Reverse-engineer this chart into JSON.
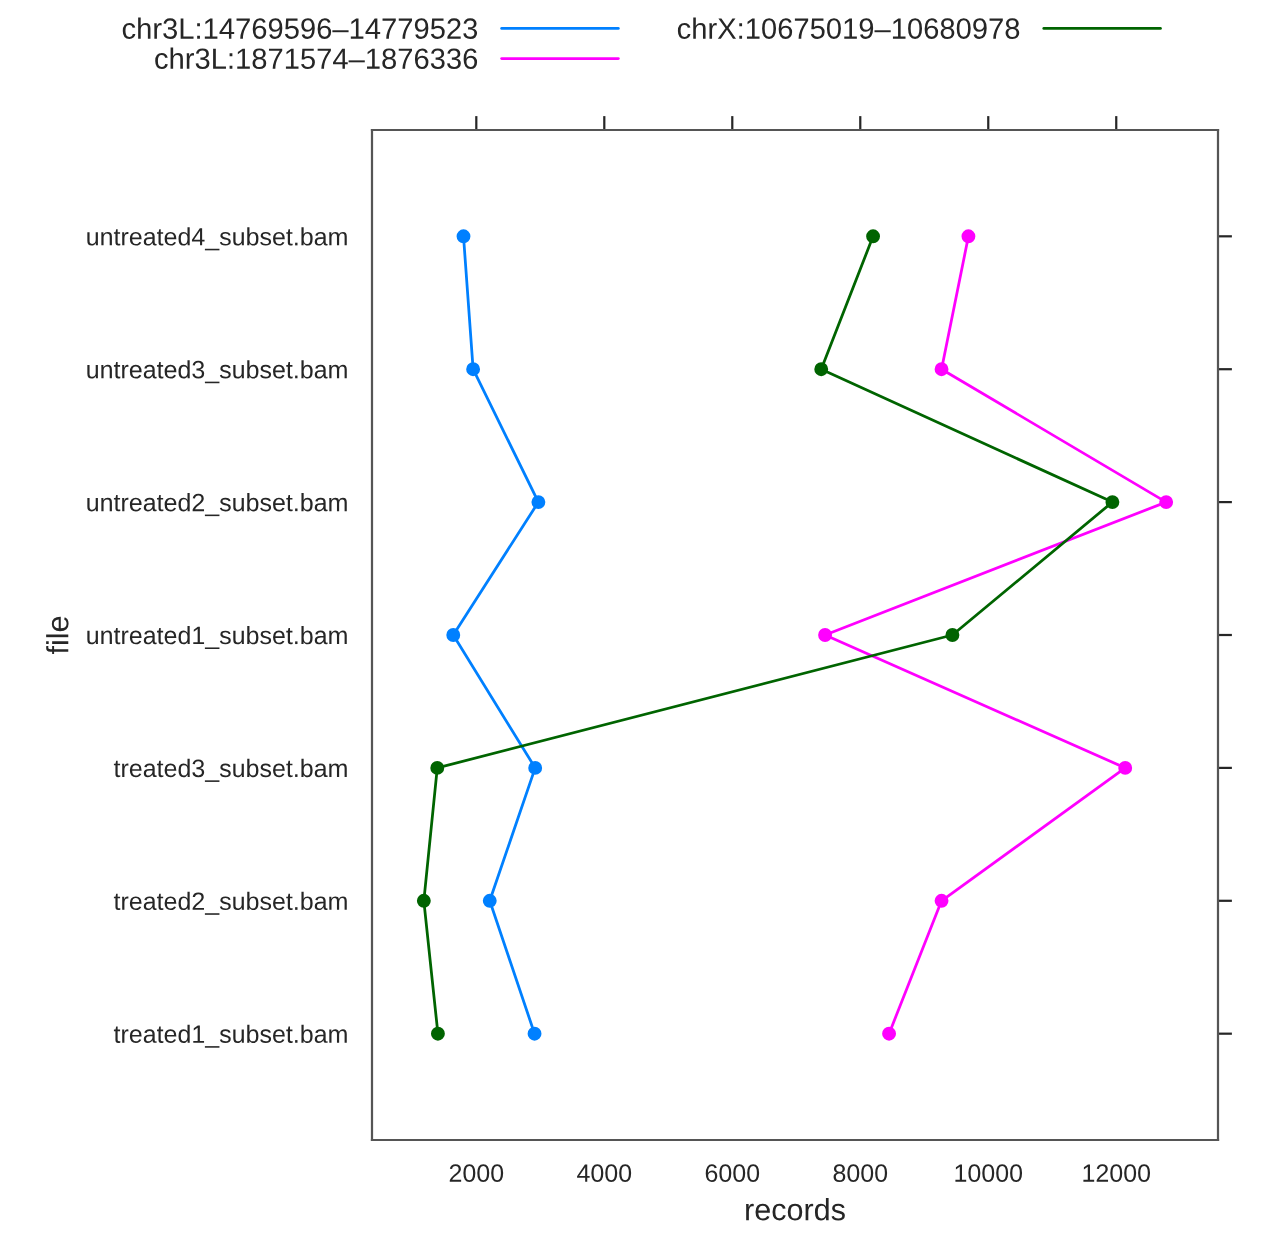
{
  "chart_data": {
    "type": "line",
    "orientation": "horizontal",
    "xlabel": "records",
    "ylabel": "file",
    "categories": [
      "untreated4_subset.bam",
      "untreated3_subset.bam",
      "untreated2_subset.bam",
      "untreated1_subset.bam",
      "treated3_subset.bam",
      "treated2_subset.bam",
      "treated1_subset.bam"
    ],
    "series": [
      {
        "name": "chr3L:14769596‒14779523",
        "color": "#0080ff",
        "values": [
          1800,
          1950,
          2970,
          1640,
          2920,
          2210,
          2910
        ]
      },
      {
        "name": "chr3L:1871574‒1876336",
        "color": "#ff00ff",
        "values": [
          9690,
          9270,
          12780,
          7450,
          12140,
          9270,
          8450
        ]
      },
      {
        "name": "chrX:10675019‒10680978",
        "color": "#006400",
        "values": [
          8200,
          7390,
          11940,
          9440,
          1390,
          1180,
          1400
        ]
      }
    ],
    "xlim": [
      370,
      13590
    ],
    "xticks": [
      2000,
      4000,
      6000,
      8000,
      10000,
      12000
    ],
    "marker": "circle",
    "line_style": "solid",
    "grid": false,
    "legend": "top"
  }
}
